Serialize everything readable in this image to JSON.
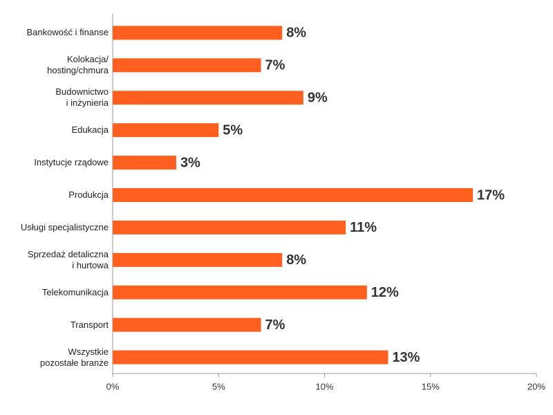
{
  "chart_data": {
    "type": "bar",
    "orientation": "horizontal",
    "color": "#ff5f1f",
    "categories": [
      "Bankowość i finanse",
      "Kolokacja/\nhosting/chmura",
      "Budownictwo\ni inżynieria",
      "Edukacja",
      "Instytucje rządowe",
      "Produkcja",
      "Usługi specjalistyczne",
      "Sprzedaż detaliczna\ni hurtowa",
      "Telekomunikacja",
      "Transport",
      "Wszystkie\npozostałe branże"
    ],
    "values": [
      8,
      7,
      9,
      5,
      3,
      17,
      11,
      8,
      12,
      7,
      13
    ],
    "value_labels": [
      "8%",
      "7%",
      "9%",
      "5%",
      "3%",
      "17%",
      "11%",
      "8%",
      "12%",
      "7%",
      "13%"
    ],
    "xlim": [
      0,
      20
    ],
    "xticks": [
      {
        "value": 0,
        "label": "0%"
      },
      {
        "value": 5,
        "label": "5%"
      },
      {
        "value": 10,
        "label": "10%"
      },
      {
        "value": 15,
        "label": "15%"
      },
      {
        "value": 20,
        "label": "20%"
      }
    ]
  }
}
